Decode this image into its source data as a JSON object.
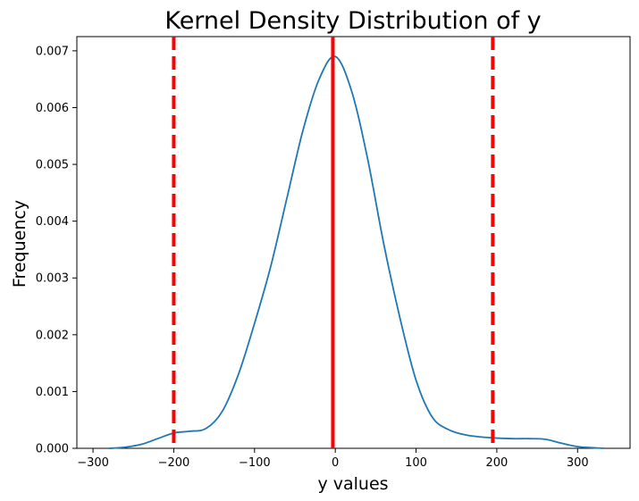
{
  "chart_data": {
    "type": "line",
    "title": "Kernel Density Distribution of y",
    "xlabel": "y values",
    "ylabel": "Frequency",
    "xlim": [
      -320,
      365
    ],
    "ylim": [
      0,
      0.00725
    ],
    "x_ticks": [
      -300,
      -200,
      -100,
      0,
      100,
      200,
      300
    ],
    "x_tick_labels": [
      "−300",
      "−200",
      "−100",
      "0",
      "100",
      "200",
      "300"
    ],
    "y_ticks": [
      0,
      0.001,
      0.002,
      0.003,
      0.004,
      0.005,
      0.006,
      0.007
    ],
    "y_tick_labels": [
      "0.000",
      "0.001",
      "0.002",
      "0.003",
      "0.004",
      "0.005",
      "0.006",
      "0.007"
    ],
    "grid": false,
    "series": [
      {
        "color": "#1f77b4",
        "x": [
          -280,
          -260,
          -240,
          -220,
          -200,
          -180,
          -160,
          -140,
          -120,
          -100,
          -80,
          -60,
          -40,
          -20,
          0,
          20,
          40,
          60,
          80,
          100,
          120,
          140,
          160,
          180,
          200,
          220,
          240,
          260,
          280,
          300,
          320,
          333
        ],
        "y": [
          0.0,
          2e-05,
          7e-05,
          0.00017,
          0.00027,
          0.0003,
          0.00035,
          0.00065,
          0.0013,
          0.0022,
          0.0032,
          0.0044,
          0.0056,
          0.0065,
          0.0069,
          0.0063,
          0.0051,
          0.0036,
          0.0023,
          0.0012,
          0.00055,
          0.00033,
          0.00024,
          0.0002,
          0.00018,
          0.00017,
          0.00017,
          0.00016,
          9e-05,
          3e-05,
          1e-05,
          0.0
        ]
      }
    ],
    "reference_lines": [
      {
        "x": -200,
        "style": "dashed",
        "color": "#ff0000"
      },
      {
        "x": -3,
        "style": "solid",
        "color": "#ff0000"
      },
      {
        "x": 195,
        "style": "dashed",
        "color": "#ff0000"
      }
    ]
  }
}
